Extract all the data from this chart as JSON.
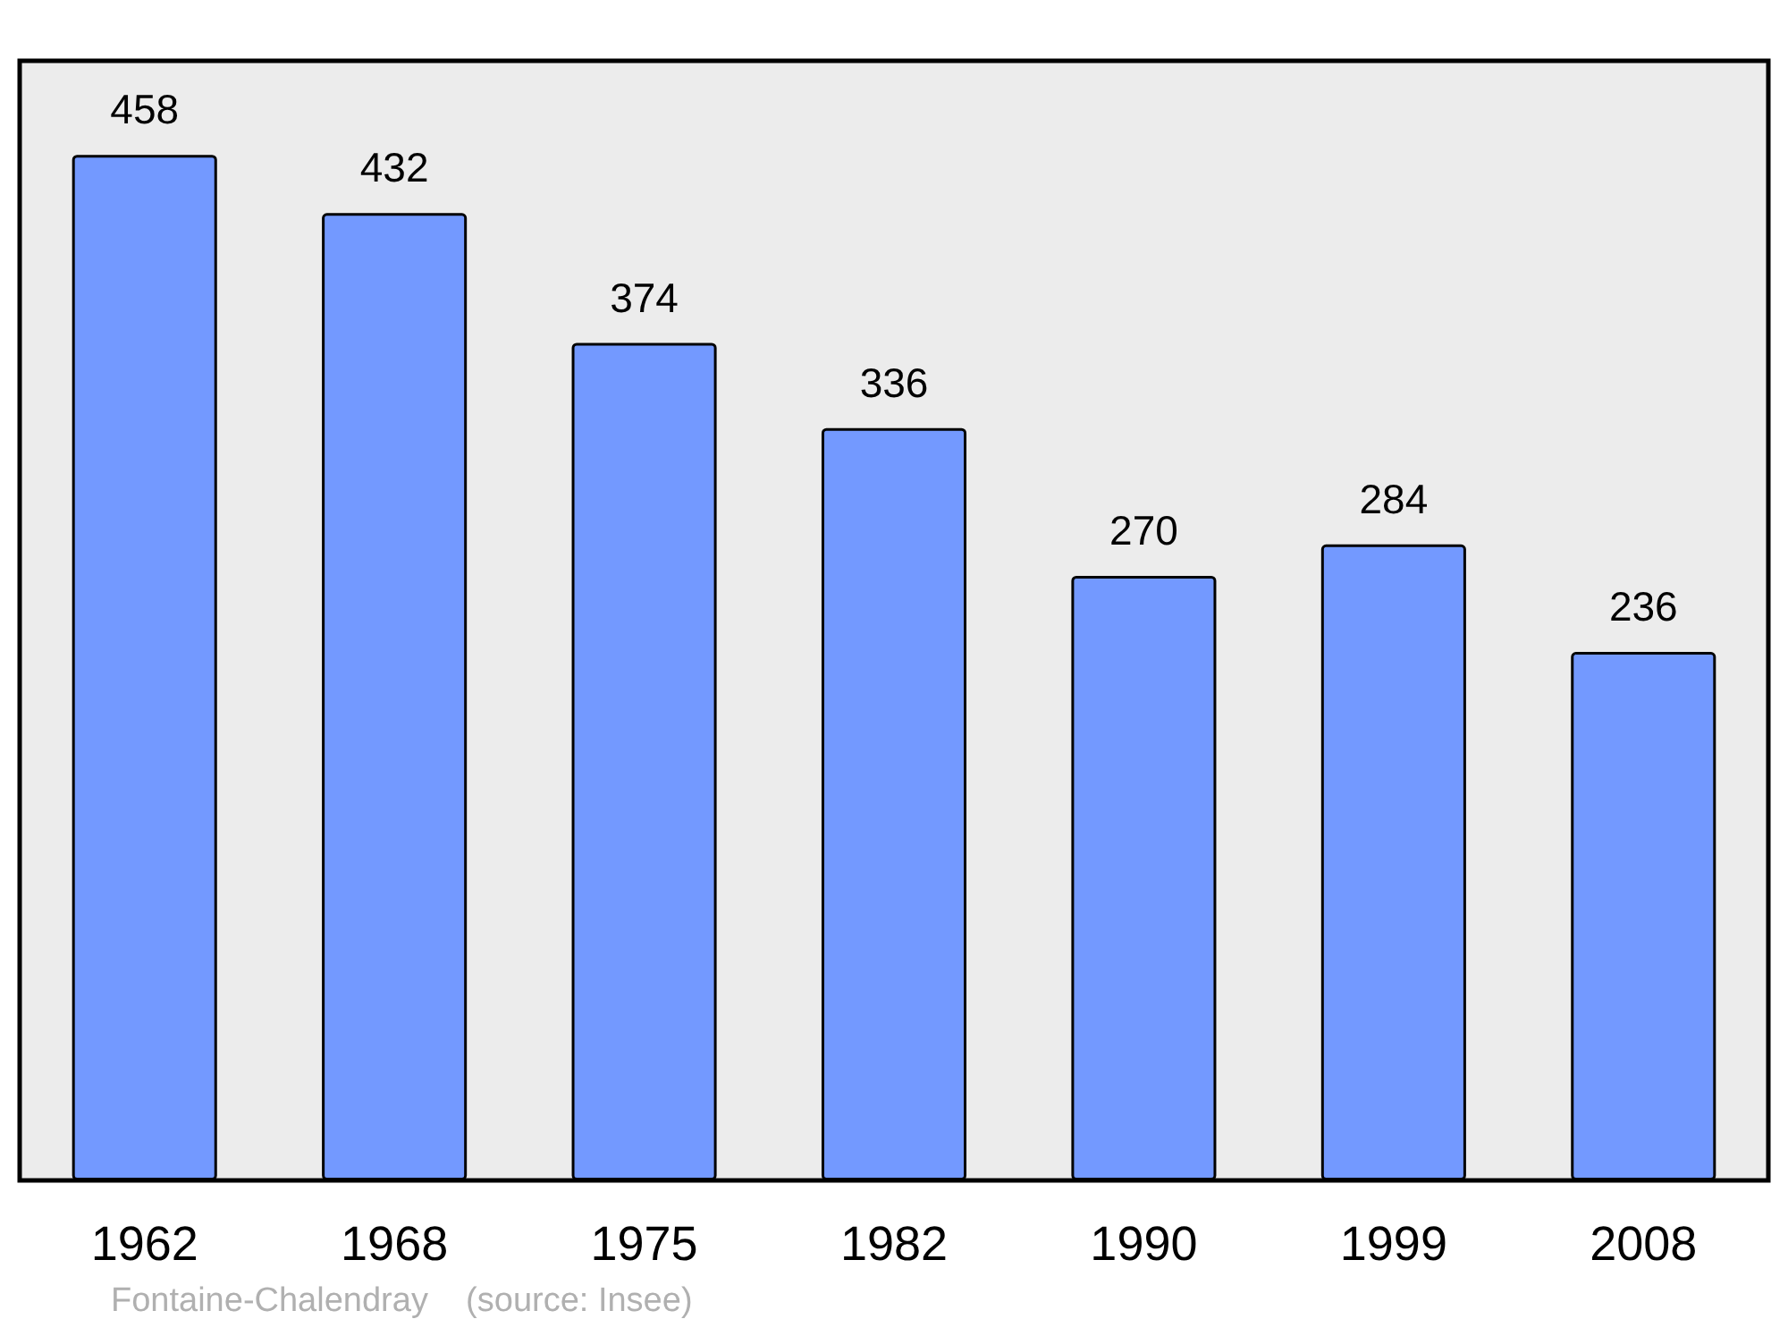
{
  "chart_data": {
    "type": "bar",
    "categories": [
      "1962",
      "1968",
      "1975",
      "1982",
      "1990",
      "1999",
      "2008"
    ],
    "values": [
      458,
      432,
      374,
      336,
      270,
      284,
      236
    ],
    "color": "#7399ff",
    "data_labels": true,
    "annotations": [
      "Fontaine-Chalendray    (source: Insee)"
    ]
  }
}
